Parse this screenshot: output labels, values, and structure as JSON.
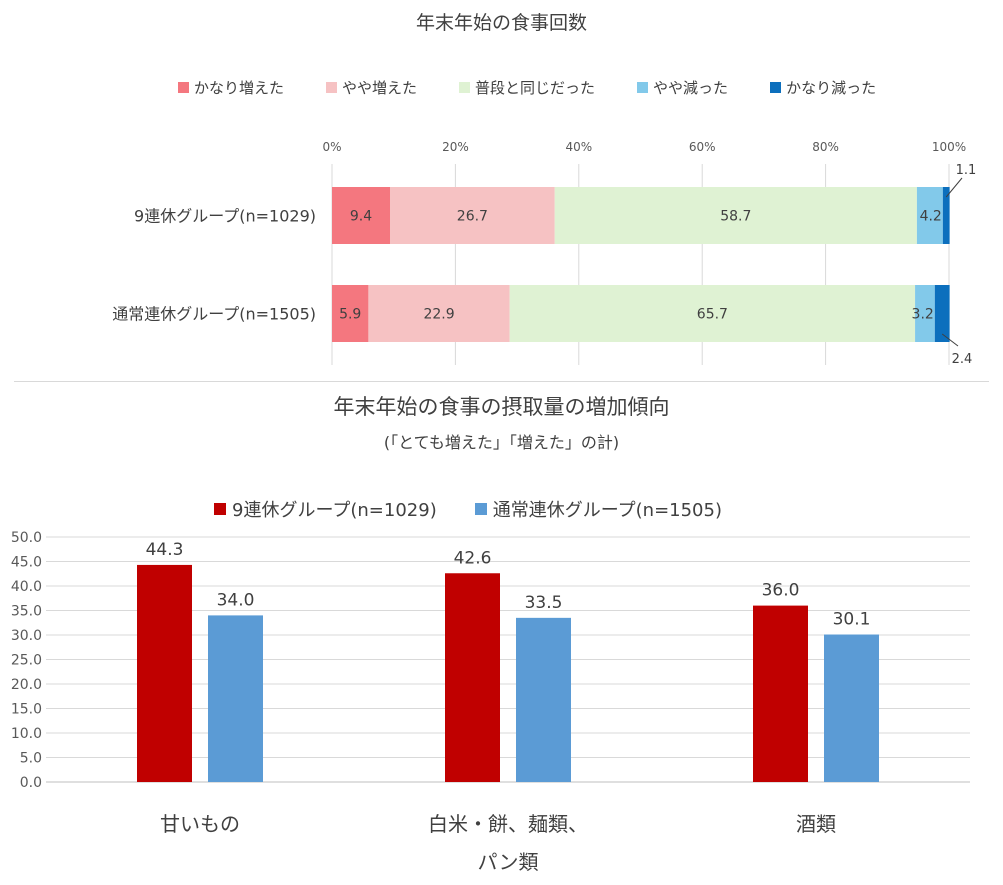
{
  "chart_data": [
    {
      "type": "bar",
      "orientation": "horizontal",
      "stacked": true,
      "title": "年末年始の食事回数",
      "categories": [
        "9連休グループ(n=1029)",
        "通常連休グループ(n=1505)"
      ],
      "series": [
        {
          "name": "かなり増えた",
          "color": "#f4777f",
          "values": [
            9.4,
            5.9
          ]
        },
        {
          "name": "やや増えた",
          "color": "#f6c2c3",
          "values": [
            26.7,
            22.9
          ]
        },
        {
          "name": "普段と同じだった",
          "color": "#dff2d3",
          "values": [
            58.7,
            65.7
          ]
        },
        {
          "name": "やや減った",
          "color": "#82c9ea",
          "values": [
            4.2,
            3.2
          ]
        },
        {
          "name": "かなり減った",
          "color": "#0c6fbd",
          "values": [
            1.1,
            2.4
          ]
        }
      ],
      "xlim": [
        0,
        100
      ],
      "ticks": [
        "0%",
        "20%",
        "40%",
        "60%",
        "80%",
        "100%"
      ],
      "tick_values": [
        0,
        20,
        40,
        60,
        80,
        100
      ],
      "legend_position": "top",
      "grid": true
    },
    {
      "type": "bar",
      "title": "年末年始の食事の摂取量の増加傾向",
      "subtitle": "(「とても増えた」「増えた」の計)",
      "categories": [
        "甘いもの",
        "白米・餅、麺類、\nパン類",
        "酒類"
      ],
      "series": [
        {
          "name": "9連休グループ(n=1029)",
          "color": "#c00000",
          "values": [
            44.3,
            42.6,
            36.0
          ],
          "labels": [
            "44.3",
            "42.6",
            "36.0"
          ]
        },
        {
          "name": "通常連休グループ(n=1505)",
          "color": "#5b9bd5",
          "values": [
            34.0,
            33.5,
            30.1
          ],
          "labels": [
            "34.0",
            "33.5",
            "30.1"
          ]
        }
      ],
      "ylim": [
        0,
        50
      ],
      "ticks": [
        "0.0",
        "5.0",
        "10.0",
        "15.0",
        "20.0",
        "25.0",
        "30.0",
        "35.0",
        "40.0",
        "45.0",
        "50.0"
      ],
      "tick_values": [
        0,
        5,
        10,
        15,
        20,
        25,
        30,
        35,
        40,
        45,
        50
      ],
      "legend_position": "top",
      "grid": true
    }
  ]
}
